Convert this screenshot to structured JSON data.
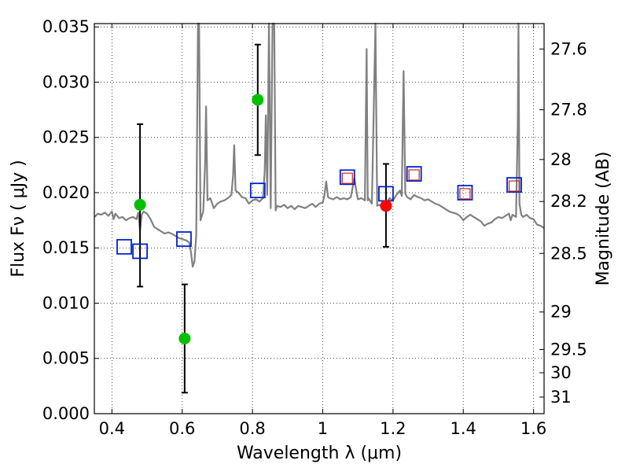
{
  "chart_data": {
    "type": "scatter",
    "xlabel": "Wavelength  λ (μm)",
    "ylabel": "Flux  Fν  ( μJy )",
    "ylabel_right": "Magnitude (AB)",
    "xlim": [
      0.35,
      1.63
    ],
    "ylim": [
      0.0,
      0.0353
    ],
    "grid": true,
    "x_ticks": [
      0.4,
      0.6,
      0.8,
      1.0,
      1.2,
      1.4,
      1.6
    ],
    "x_tick_labels": [
      "0.4",
      "0.6",
      "0.8",
      "1",
      "1.2",
      "1.4",
      "1.6"
    ],
    "y_ticks": [
      0.0,
      0.005,
      0.01,
      0.015,
      0.02,
      0.025,
      0.03,
      0.035
    ],
    "y_tick_labels": [
      "0.000",
      "0.005",
      "0.010",
      "0.015",
      "0.020",
      "0.025",
      "0.030",
      "0.035"
    ],
    "right_axis_labels": [
      {
        "label": "27.6",
        "flux": 0.033
      },
      {
        "label": "27.8",
        "flux": 0.0275
      },
      {
        "label": "28",
        "flux": 0.023
      },
      {
        "label": "28.2",
        "flux": 0.0192
      },
      {
        "label": "28.5",
        "flux": 0.0145
      },
      {
        "label": "29",
        "flux": 0.0092
      },
      {
        "label": "29.5",
        "flux": 0.0058
      },
      {
        "label": "30",
        "flux": 0.0037
      },
      {
        "label": "31",
        "flux": 0.0015
      }
    ],
    "series": [
      {
        "kind": "line",
        "color": "#808080",
        "points": [
          [
            0.35,
            0.0178
          ],
          [
            0.36,
            0.0181
          ],
          [
            0.37,
            0.018
          ],
          [
            0.38,
            0.0182
          ],
          [
            0.39,
            0.0179
          ],
          [
            0.4,
            0.0183
          ],
          [
            0.405,
            0.0176
          ],
          [
            0.41,
            0.0181
          ],
          [
            0.42,
            0.0177
          ],
          [
            0.43,
            0.0178
          ],
          [
            0.44,
            0.0175
          ],
          [
            0.45,
            0.0177
          ],
          [
            0.46,
            0.0178
          ],
          [
            0.47,
            0.0176
          ],
          [
            0.475,
            0.0182
          ],
          [
            0.48,
            0.0166
          ],
          [
            0.485,
            0.018
          ],
          [
            0.49,
            0.0183
          ],
          [
            0.5,
            0.0181
          ],
          [
            0.51,
            0.0176
          ],
          [
            0.52,
            0.0169
          ],
          [
            0.53,
            0.0167
          ],
          [
            0.54,
            0.0165
          ],
          [
            0.55,
            0.0163
          ],
          [
            0.56,
            0.0164
          ],
          [
            0.57,
            0.0163
          ],
          [
            0.58,
            0.0161
          ],
          [
            0.59,
            0.0159
          ],
          [
            0.6,
            0.0158
          ],
          [
            0.61,
            0.0157
          ],
          [
            0.62,
            0.0155
          ],
          [
            0.625,
            0.0146
          ],
          [
            0.63,
            0.0133
          ],
          [
            0.635,
            0.0138
          ],
          [
            0.64,
            0.0162
          ],
          [
            0.645,
            0.036
          ],
          [
            0.648,
            0.036
          ],
          [
            0.652,
            0.0175
          ],
          [
            0.66,
            0.0183
          ],
          [
            0.665,
            0.0225
          ],
          [
            0.668,
            0.0278
          ],
          [
            0.672,
            0.0193
          ],
          [
            0.68,
            0.0195
          ],
          [
            0.69,
            0.0186
          ],
          [
            0.7,
            0.019
          ],
          [
            0.71,
            0.0192
          ],
          [
            0.72,
            0.0193
          ],
          [
            0.73,
            0.0195
          ],
          [
            0.74,
            0.0198
          ],
          [
            0.745,
            0.0216
          ],
          [
            0.748,
            0.0243
          ],
          [
            0.752,
            0.0202
          ],
          [
            0.76,
            0.02
          ],
          [
            0.77,
            0.0196
          ],
          [
            0.78,
            0.0195
          ],
          [
            0.79,
            0.019
          ],
          [
            0.8,
            0.0193
          ],
          [
            0.81,
            0.0194
          ],
          [
            0.82,
            0.0192
          ],
          [
            0.83,
            0.0195
          ],
          [
            0.835,
            0.022
          ],
          [
            0.838,
            0.027
          ],
          [
            0.842,
            0.0198
          ],
          [
            0.847,
            0.036
          ],
          [
            0.852,
            0.0186
          ],
          [
            0.857,
            0.036
          ],
          [
            0.862,
            0.036
          ],
          [
            0.866,
            0.0184
          ],
          [
            0.87,
            0.0188
          ],
          [
            0.88,
            0.0187
          ],
          [
            0.89,
            0.0189
          ],
          [
            0.9,
            0.0186
          ],
          [
            0.91,
            0.0188
          ],
          [
            0.92,
            0.0185
          ],
          [
            0.93,
            0.0188
          ],
          [
            0.94,
            0.0187
          ],
          [
            0.95,
            0.0186
          ],
          [
            0.96,
            0.0188
          ],
          [
            0.97,
            0.019
          ],
          [
            0.98,
            0.0187
          ],
          [
            0.99,
            0.019
          ],
          [
            1.0,
            0.0191
          ],
          [
            1.005,
            0.0198
          ],
          [
            1.01,
            0.021
          ],
          [
            1.015,
            0.0196
          ],
          [
            1.02,
            0.0195
          ],
          [
            1.03,
            0.0194
          ],
          [
            1.04,
            0.0196
          ],
          [
            1.05,
            0.0194
          ],
          [
            1.06,
            0.0195
          ],
          [
            1.07,
            0.0194
          ],
          [
            1.08,
            0.0196
          ],
          [
            1.09,
            0.0213
          ],
          [
            1.095,
            0.0203
          ],
          [
            1.1,
            0.0194
          ],
          [
            1.11,
            0.0195
          ],
          [
            1.12,
            0.0193
          ],
          [
            1.125,
            0.033
          ],
          [
            1.128,
            0.0193
          ],
          [
            1.13,
            0.0195
          ],
          [
            1.14,
            0.019
          ],
          [
            1.15,
            0.036
          ],
          [
            1.155,
            0.0188
          ],
          [
            1.16,
            0.0189
          ],
          [
            1.17,
            0.0187
          ],
          [
            1.18,
            0.019
          ],
          [
            1.19,
            0.0195
          ],
          [
            1.2,
            0.0193
          ],
          [
            1.21,
            0.0198
          ],
          [
            1.22,
            0.0202
          ],
          [
            1.225,
            0.0197
          ],
          [
            1.23,
            0.031
          ],
          [
            1.235,
            0.0199
          ],
          [
            1.24,
            0.0196
          ],
          [
            1.25,
            0.0194
          ],
          [
            1.26,
            0.0198
          ],
          [
            1.27,
            0.0196
          ],
          [
            1.28,
            0.0195
          ],
          [
            1.29,
            0.0193
          ],
          [
            1.3,
            0.0194
          ],
          [
            1.31,
            0.0192
          ],
          [
            1.32,
            0.019
          ],
          [
            1.33,
            0.0189
          ],
          [
            1.34,
            0.0187
          ],
          [
            1.35,
            0.0185
          ],
          [
            1.36,
            0.0183
          ],
          [
            1.37,
            0.0182
          ],
          [
            1.38,
            0.0181
          ],
          [
            1.39,
            0.0179
          ],
          [
            1.4,
            0.0175
          ],
          [
            1.41,
            0.0178
          ],
          [
            1.42,
            0.018
          ],
          [
            1.43,
            0.0178
          ],
          [
            1.44,
            0.0176
          ],
          [
            1.45,
            0.0174
          ],
          [
            1.46,
            0.017
          ],
          [
            1.47,
            0.0172
          ],
          [
            1.48,
            0.0173
          ],
          [
            1.49,
            0.0176
          ],
          [
            1.5,
            0.0178
          ],
          [
            1.51,
            0.0177
          ],
          [
            1.52,
            0.0179
          ],
          [
            1.53,
            0.0181
          ],
          [
            1.535,
            0.0175
          ],
          [
            1.54,
            0.018
          ],
          [
            1.55,
            0.0178
          ],
          [
            1.555,
            0.026
          ],
          [
            1.557,
            0.036
          ],
          [
            1.56,
            0.019
          ],
          [
            1.565,
            0.018
          ],
          [
            1.57,
            0.0178
          ],
          [
            1.58,
            0.018
          ],
          [
            1.59,
            0.0177
          ],
          [
            1.6,
            0.0176
          ],
          [
            1.61,
            0.0171
          ],
          [
            1.62,
            0.017
          ],
          [
            1.63,
            0.0168
          ]
        ]
      },
      {
        "kind": "errorbar",
        "color": "#00c000",
        "points": [
          {
            "x": 0.48,
            "y": 0.0189,
            "yerr_low": 0.0115,
            "yerr_high": 0.0262
          },
          {
            "x": 0.607,
            "y": 0.0068,
            "yerr_low": 0.0019,
            "yerr_high": 0.0117
          },
          {
            "x": 0.815,
            "y": 0.0284,
            "yerr_low": 0.0234,
            "yerr_high": 0.0334
          }
        ]
      },
      {
        "kind": "errorbar",
        "color": "#ff0000",
        "points": [
          {
            "x": 1.18,
            "y": 0.0188,
            "yerr_low": 0.0151,
            "yerr_high": 0.0226
          }
        ]
      },
      {
        "kind": "square",
        "color": "#0022cc",
        "points": [
          [
            0.435,
            0.0151
          ],
          [
            0.48,
            0.0147
          ],
          [
            0.605,
            0.0158
          ],
          [
            0.815,
            0.0202
          ],
          [
            1.07,
            0.0214
          ],
          [
            1.18,
            0.0199
          ],
          [
            1.26,
            0.0217
          ],
          [
            1.405,
            0.02
          ],
          [
            1.545,
            0.0207
          ]
        ]
      },
      {
        "kind": "square",
        "color": "#cc2222",
        "points": [
          [
            1.07,
            0.0213
          ],
          [
            1.26,
            0.0216
          ],
          [
            1.405,
            0.0199
          ],
          [
            1.545,
            0.0206
          ]
        ]
      }
    ]
  }
}
